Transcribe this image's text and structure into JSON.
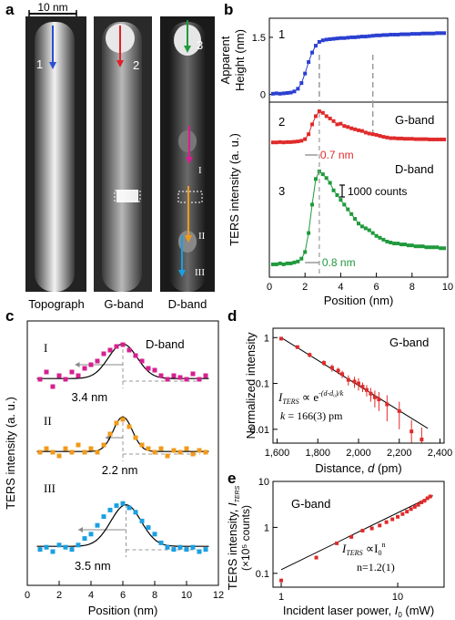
{
  "panel_a": {
    "letter": "a",
    "scale_bar": "10 nm",
    "images": [
      {
        "caption": "Topograph",
        "number": "1",
        "arrow_color": "#2a4fd6"
      },
      {
        "caption": "G-band",
        "number": "2",
        "arrow_color": "#e0202a"
      },
      {
        "caption": "D-band",
        "number": "3",
        "arrow_color": "#1f9a3c",
        "segments": [
          {
            "label": "I",
            "color": "#d6208f"
          },
          {
            "label": "II",
            "color": "#f09a1a"
          },
          {
            "label": "III",
            "color": "#1aa0e0"
          }
        ]
      }
    ]
  },
  "chart_data": [
    {
      "panel": "b-top",
      "letter": "b",
      "type": "line",
      "number": "1",
      "ylabel": "Apparent Height (nm)",
      "ylabel_lines": [
        "Apparent",
        "Height (nm)"
      ],
      "ylim": [
        -0.2,
        2.0
      ],
      "yticks": [
        0,
        1.5
      ],
      "xlim": [
        0,
        10
      ],
      "color": "#2a3fd0",
      "dashed_x": [
        2.8,
        5.8
      ],
      "x": [
        0.2,
        0.4,
        0.6,
        0.8,
        1.0,
        1.2,
        1.4,
        1.6,
        1.8,
        2.0,
        2.2,
        2.4,
        2.6,
        2.8,
        3.0,
        3.2,
        3.4,
        3.6,
        3.8,
        4.0,
        4.2,
        4.4,
        4.6,
        4.8,
        5.0,
        5.2,
        5.4,
        5.6,
        5.8,
        6.0,
        6.2,
        6.4,
        6.6,
        6.8,
        7.0,
        7.2,
        7.4,
        7.6,
        7.8,
        8.0,
        8.2,
        8.4,
        8.6,
        8.8,
        9.0,
        9.2,
        9.4,
        9.6,
        9.8
      ],
      "y": [
        0.02,
        0.03,
        0.02,
        0.03,
        0.04,
        0.05,
        0.08,
        0.15,
        0.3,
        0.55,
        0.85,
        1.1,
        1.28,
        1.38,
        1.42,
        1.44,
        1.45,
        1.46,
        1.47,
        1.48,
        1.48,
        1.49,
        1.5,
        1.5,
        1.51,
        1.52,
        1.52,
        1.53,
        1.54,
        1.55,
        1.55,
        1.56,
        1.56,
        1.57,
        1.57,
        1.57,
        1.58,
        1.58,
        1.58,
        1.59,
        1.59,
        1.59,
        1.6,
        1.6,
        1.6,
        1.6,
        1.61,
        1.61,
        1.61
      ]
    },
    {
      "panel": "b-bottom",
      "letter": "",
      "type": "line",
      "xlabel": "Position (nm)",
      "ylabel": "TERS intensity (a. u.)",
      "xlim": [
        0,
        10
      ],
      "xticks": [
        0,
        2,
        4,
        6,
        8,
        10
      ],
      "scale_bar_label": "1000 counts",
      "series": [
        {
          "name": "G-band",
          "number": "2",
          "color": "#e02a2a",
          "dash_x": 5.8,
          "annotation": "0.7 nm",
          "annotation_color": "#e02a2a",
          "annotation_x": [
            2.0,
            2.7
          ],
          "x": [
            0.2,
            0.4,
            0.6,
            0.8,
            1.0,
            1.2,
            1.4,
            1.6,
            1.8,
            2.0,
            2.2,
            2.4,
            2.6,
            2.8,
            3.0,
            3.2,
            3.4,
            3.6,
            3.8,
            4.0,
            4.2,
            4.4,
            4.6,
            4.8,
            5.0,
            5.2,
            5.4,
            5.6,
            5.8,
            6.0,
            6.2,
            6.4,
            6.6,
            6.8,
            7.0,
            7.2,
            7.4,
            7.6,
            7.8,
            8.0,
            8.2,
            8.4,
            8.6,
            8.8,
            9.0,
            9.2,
            9.4,
            9.6,
            9.8
          ],
          "y": [
            0.05,
            0.05,
            0.06,
            0.05,
            0.06,
            0.06,
            0.07,
            0.08,
            0.1,
            0.15,
            0.3,
            0.6,
            0.85,
            1.0,
            0.95,
            0.85,
            0.78,
            0.7,
            0.6,
            0.62,
            0.55,
            0.52,
            0.48,
            0.45,
            0.42,
            0.4,
            0.35,
            0.32,
            0.3,
            0.28,
            0.25,
            0.22,
            0.2,
            0.18,
            0.18,
            0.17,
            0.17,
            0.16,
            0.16,
            0.16,
            0.15,
            0.15,
            0.15,
            0.15,
            0.14,
            0.14,
            0.14,
            0.14,
            0.14
          ]
        },
        {
          "name": "D-band",
          "number": "3",
          "color": "#1f9a3c",
          "annotation": "0.8 nm",
          "annotation_color": "#1f9a3c",
          "annotation_x": [
            2.0,
            2.8
          ],
          "x": [
            0.2,
            0.4,
            0.6,
            0.8,
            1.0,
            1.2,
            1.4,
            1.6,
            1.8,
            2.0,
            2.2,
            2.4,
            2.6,
            2.8,
            3.0,
            3.2,
            3.4,
            3.6,
            3.8,
            4.0,
            4.2,
            4.4,
            4.6,
            4.8,
            5.0,
            5.2,
            5.4,
            5.6,
            5.8,
            6.0,
            6.2,
            6.4,
            6.6,
            6.8,
            7.0,
            7.2,
            7.4,
            7.6,
            7.8,
            8.0,
            8.2,
            8.4,
            8.6,
            8.8,
            9.0,
            9.2,
            9.4,
            9.6,
            9.8
          ],
          "y": [
            0.02,
            0.02,
            0.03,
            0.02,
            0.03,
            0.03,
            0.04,
            0.05,
            0.08,
            0.15,
            0.35,
            0.65,
            0.92,
            1.0,
            0.97,
            0.93,
            0.88,
            0.8,
            0.75,
            0.7,
            0.65,
            0.6,
            0.55,
            0.5,
            0.45,
            0.42,
            0.4,
            0.38,
            0.35,
            0.32,
            0.3,
            0.28,
            0.26,
            0.25,
            0.24,
            0.24,
            0.23,
            0.23,
            0.22,
            0.22,
            0.21,
            0.21,
            0.21,
            0.2,
            0.2,
            0.2,
            0.2,
            0.19,
            0.19
          ]
        }
      ]
    },
    {
      "panel": "c",
      "letter": "c",
      "type": "scatter",
      "xlabel": "Position (nm)",
      "ylabel": "TERS intensity (a. u.)",
      "xlim": [
        0,
        12
      ],
      "xticks": [
        0,
        2,
        4,
        6,
        8,
        10,
        12
      ],
      "title": "D-band",
      "series": [
        {
          "name": "I",
          "color": "#d6208f",
          "center": 6.0,
          "fwhm_label": "3.4 nm",
          "fwhm_x": [
            3.0,
            6.0
          ],
          "x": [
            0.8,
            1.2,
            1.6,
            2.0,
            2.4,
            2.8,
            3.2,
            3.6,
            4.0,
            4.4,
            4.8,
            5.2,
            5.6,
            6.0,
            6.4,
            6.8,
            7.2,
            7.6,
            8.0,
            8.4,
            8.8,
            9.2,
            9.6,
            10.0,
            10.4,
            10.8,
            11.2
          ],
          "y": [
            0.1,
            0.3,
            -0.1,
            0.2,
            0.1,
            0.3,
            0.2,
            0.4,
            0.5,
            0.6,
            0.8,
            0.9,
            1.0,
            1.05,
            0.9,
            0.75,
            0.6,
            0.4,
            0.35,
            0.2,
            0.1,
            0.2,
            0.15,
            0.1,
            0.25,
            0.1,
            0.2
          ]
        },
        {
          "name": "II",
          "color": "#f09a1a",
          "center": 6.0,
          "fwhm_label": "2.2 nm",
          "fwhm_x": [
            4.9,
            6.0
          ],
          "x": [
            0.8,
            1.2,
            1.6,
            2.0,
            2.4,
            2.8,
            3.2,
            3.6,
            4.0,
            4.4,
            4.8,
            5.2,
            5.6,
            6.0,
            6.4,
            6.8,
            7.2,
            7.6,
            8.0,
            8.4,
            8.8,
            9.2,
            9.6,
            10.0,
            10.4,
            10.8,
            11.2
          ],
          "y": [
            0.1,
            0.2,
            0.1,
            0.0,
            0.2,
            0.1,
            0.3,
            0.1,
            0.2,
            0.1,
            0.3,
            0.6,
            0.9,
            1.0,
            0.8,
            0.5,
            0.3,
            0.2,
            0.1,
            0.2,
            0.0,
            0.15,
            0.1,
            0.2,
            0.05,
            0.15,
            0.1
          ]
        },
        {
          "name": "III",
          "color": "#1aa0e0",
          "center": 6.2,
          "fwhm_label": "3.5 nm",
          "fwhm_x": [
            3.2,
            6.2
          ],
          "x": [
            0.8,
            1.2,
            1.6,
            2.0,
            2.4,
            2.8,
            3.2,
            3.6,
            4.0,
            4.4,
            4.8,
            5.2,
            5.6,
            6.0,
            6.4,
            6.8,
            7.2,
            7.6,
            8.0,
            8.4,
            8.8,
            9.2,
            9.6,
            10.0,
            10.4,
            10.8,
            11.2
          ],
          "y": [
            0.05,
            0.1,
            0.0,
            0.15,
            0.1,
            0.05,
            0.15,
            0.3,
            0.4,
            0.6,
            0.8,
            0.95,
            1.05,
            1.1,
            1.0,
            0.9,
            0.7,
            0.55,
            0.4,
            0.2,
            0.1,
            0.05,
            0.1,
            0.05,
            0.1,
            0.0,
            0.05
          ]
        }
      ]
    },
    {
      "panel": "d",
      "letter": "d",
      "type": "scatter",
      "xlabel": "Distance, d (pm)",
      "xlabel_prefix": "Distance, ",
      "xlabel_var": "d",
      "xlabel_suffix": " (pm)",
      "ylabel": "Normalized intensity",
      "yscale": "log",
      "xlim": [
        1580,
        2420
      ],
      "ylim": [
        0.005,
        1.6
      ],
      "xticks": [
        1600,
        1800,
        2000,
        2200,
        2400
      ],
      "xtick_labels": [
        "1,600",
        "1,800",
        "2,000",
        "2,200",
        "2,400"
      ],
      "yticks": [
        0.01,
        0.1,
        1
      ],
      "ytick_labels": [
        "0.01",
        "0.1",
        "1"
      ],
      "title": "G-band",
      "color": "#e02a2a",
      "equation_lhs": "I",
      "equation_sub": "TERS",
      "equation_prop": " ∝ e",
      "equation_exp": "-(d-d₀)/k",
      "k_label": "k",
      "k_value": " = 166(3) pm",
      "fit": {
        "x": [
          1620,
          2340
        ],
        "y": [
          1.0,
          0.0105
        ]
      },
      "x": [
        1620,
        1700,
        1760,
        1830,
        1870,
        1900,
        1920,
        1950,
        1980,
        2000,
        2020,
        2040,
        2060,
        2080,
        2100,
        2140,
        2200,
        2260,
        2310
      ],
      "y": [
        0.95,
        0.62,
        0.42,
        0.28,
        0.22,
        0.19,
        0.16,
        0.12,
        0.11,
        0.1,
        0.085,
        0.072,
        0.06,
        0.05,
        0.045,
        0.035,
        0.025,
        0.009,
        0.006
      ],
      "err": [
        0.05,
        0.05,
        0.05,
        0.04,
        0.04,
        0.03,
        0.03,
        0.03,
        0.03,
        0.03,
        0.02,
        0.02,
        0.02,
        0.02,
        0.02,
        0.02,
        0.015,
        0.007,
        0.005
      ]
    },
    {
      "panel": "e",
      "letter": "e",
      "type": "scatter",
      "xlabel": "Incident laser power, I₀ (mW)",
      "xlabel_prefix": "Incident laser power, ",
      "xlabel_var": "I",
      "xlabel_sub": "0",
      "xlabel_suffix": " (mW)",
      "ylabel": "TERS intensity, I_TERS",
      "ylabel_main": "TERS intensity, ",
      "ylabel_var": "I",
      "ylabel_sub": "TERS",
      "ylabel_units": "(×10⁵ counts)",
      "xscale": "log",
      "yscale": "log",
      "xlim": [
        0.85,
        25
      ],
      "ylim": [
        0.05,
        10
      ],
      "xticks": [
        1,
        10
      ],
      "xtick_labels": [
        "1",
        "10"
      ],
      "yticks": [
        0.1,
        1,
        10
      ],
      "ytick_labels": [
        "0.1",
        "1",
        "10"
      ],
      "title": "G-band",
      "color": "#e02a2a",
      "equation_lhs": "I",
      "equation_sub": "TERS",
      "equation_prop": " ∝I",
      "equation_exp_base_sub": "0",
      "equation_exp": "n",
      "n_label": "n=1.2(1)",
      "fit": {
        "x": [
          1.0,
          20
        ],
        "y": [
          0.12,
          4.9
        ]
      },
      "x": [
        1.0,
        2.0,
        3.0,
        4.0,
        5.0,
        6.0,
        7.0,
        8.0,
        9.0,
        10.0,
        11.0,
        12.0,
        13.0,
        14.0,
        15.0,
        16.0,
        17.0,
        18.0,
        19.0
      ],
      "y": [
        0.07,
        0.22,
        0.45,
        0.62,
        0.85,
        0.95,
        1.1,
        1.3,
        1.5,
        1.7,
        1.95,
        2.2,
        2.5,
        2.8,
        3.1,
        3.5,
        3.8,
        4.3,
        4.7
      ]
    }
  ]
}
